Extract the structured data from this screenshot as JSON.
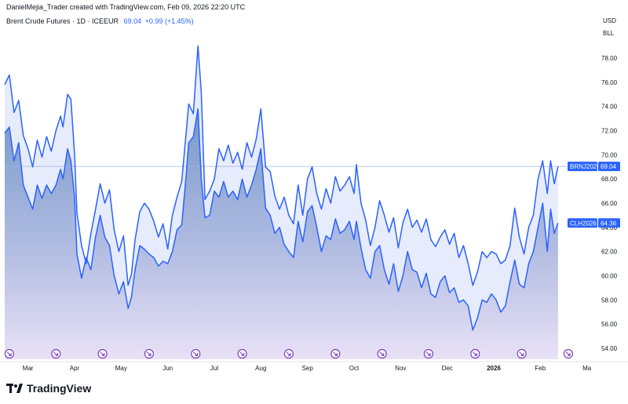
{
  "header": {
    "credit": "DanielMejia_Trader created with TradingView.com, Feb 09, 2026 22:20 UTC",
    "symbol_title": "Brent Crude Futures · 1D · ICEEUR",
    "last_value": "69.04",
    "change": "+0.99 (+1.45%)"
  },
  "axis": {
    "currency": "USD",
    "unit": "BLL"
  },
  "brand": {
    "name": "TradingView"
  },
  "colors": {
    "line": "#2962ff",
    "fill_top": "#6f93c5",
    "fill_bottom": "#e6def5",
    "band": "#dfe6fb",
    "events": "#7e3fbf"
  },
  "chart_data": {
    "type": "line",
    "title": "Brent Crude Futures · 1D · ICEEUR",
    "ylim": [
      53,
      80
    ],
    "yticks": [
      "54.00",
      "56.00",
      "58.00",
      "60.00",
      "62.00",
      "64.00",
      "66.00",
      "68.00",
      "70.00",
      "72.00",
      "74.00",
      "76.00",
      "78.00"
    ],
    "xlim": [
      0,
      13
    ],
    "x_labels": [
      {
        "label": "Mar",
        "x": 0.5
      },
      {
        "label": "Apr",
        "x": 1.5
      },
      {
        "label": "May",
        "x": 2.5
      },
      {
        "label": "Jun",
        "x": 3.5
      },
      {
        "label": "Jul",
        "x": 4.5
      },
      {
        "label": "Aug",
        "x": 5.5
      },
      {
        "label": "Sep",
        "x": 6.5
      },
      {
        "label": "Oct",
        "x": 7.5
      },
      {
        "label": "Nov",
        "x": 8.5
      },
      {
        "label": "Dec",
        "x": 9.5
      },
      {
        "label": "2026",
        "x": 10.5,
        "bold": true
      },
      {
        "label": "Feb",
        "x": 11.5
      },
      {
        "label": "Ma",
        "x": 12.5
      }
    ],
    "event_markers": [
      0.1,
      1.1,
      2.1,
      3.1,
      4.1,
      5.1,
      6.1,
      7.1,
      8.1,
      9.1,
      10.1,
      11.1,
      12.1
    ],
    "series": [
      {
        "name": "BRNJ2026",
        "last": "69.04",
        "points": [
          [
            0.0,
            75.8
          ],
          [
            0.1,
            76.6
          ],
          [
            0.2,
            73.5
          ],
          [
            0.3,
            74.5
          ],
          [
            0.4,
            71.6
          ],
          [
            0.5,
            70.5
          ],
          [
            0.6,
            69.0
          ],
          [
            0.7,
            71.2
          ],
          [
            0.8,
            69.8
          ],
          [
            0.9,
            71.5
          ],
          [
            1.0,
            70.3
          ],
          [
            1.1,
            72.0
          ],
          [
            1.2,
            73.2
          ],
          [
            1.25,
            72.3
          ],
          [
            1.35,
            75.0
          ],
          [
            1.42,
            74.6
          ],
          [
            1.5,
            70.0
          ],
          [
            1.55,
            65.2
          ],
          [
            1.65,
            62.5
          ],
          [
            1.75,
            61.0
          ],
          [
            1.85,
            63.5
          ],
          [
            1.95,
            65.5
          ],
          [
            2.05,
            67.6
          ],
          [
            2.15,
            66.0
          ],
          [
            2.25,
            67.1
          ],
          [
            2.35,
            63.8
          ],
          [
            2.45,
            62.0
          ],
          [
            2.55,
            63.3
          ],
          [
            2.65,
            59.2
          ],
          [
            2.72,
            60.1
          ],
          [
            2.8,
            63.0
          ],
          [
            2.9,
            65.3
          ],
          [
            3.0,
            66.0
          ],
          [
            3.1,
            65.5
          ],
          [
            3.2,
            64.5
          ],
          [
            3.3,
            63.2
          ],
          [
            3.4,
            64.3
          ],
          [
            3.5,
            62.2
          ],
          [
            3.6,
            65.0
          ],
          [
            3.7,
            66.5
          ],
          [
            3.8,
            67.8
          ],
          [
            3.9,
            72.0
          ],
          [
            3.95,
            74.2
          ],
          [
            4.05,
            73.4
          ],
          [
            4.15,
            79.0
          ],
          [
            4.22,
            75.2
          ],
          [
            4.3,
            66.3
          ],
          [
            4.4,
            67.0
          ],
          [
            4.5,
            68.0
          ],
          [
            4.6,
            70.5
          ],
          [
            4.7,
            69.5
          ],
          [
            4.8,
            70.8
          ],
          [
            4.9,
            69.3
          ],
          [
            5.0,
            70.2
          ],
          [
            5.1,
            68.8
          ],
          [
            5.2,
            71.0
          ],
          [
            5.3,
            69.8
          ],
          [
            5.4,
            71.3
          ],
          [
            5.5,
            73.8
          ],
          [
            5.6,
            69.0
          ],
          [
            5.7,
            68.6
          ],
          [
            5.8,
            66.6
          ],
          [
            5.9,
            65.5
          ],
          [
            6.0,
            66.5
          ],
          [
            6.1,
            65.0
          ],
          [
            6.2,
            64.3
          ],
          [
            6.3,
            67.5
          ],
          [
            6.4,
            65.0
          ],
          [
            6.5,
            68.0
          ],
          [
            6.6,
            69.0
          ],
          [
            6.7,
            66.8
          ],
          [
            6.8,
            65.5
          ],
          [
            6.9,
            67.2
          ],
          [
            7.0,
            66.0
          ],
          [
            7.1,
            68.2
          ],
          [
            7.2,
            67.0
          ],
          [
            7.3,
            67.5
          ],
          [
            7.4,
            68.2
          ],
          [
            7.5,
            66.8
          ],
          [
            7.55,
            69.2
          ],
          [
            7.65,
            66.0
          ],
          [
            7.75,
            64.6
          ],
          [
            7.85,
            62.5
          ],
          [
            7.95,
            64.0
          ],
          [
            8.05,
            66.2
          ],
          [
            8.15,
            65.0
          ],
          [
            8.25,
            63.6
          ],
          [
            8.35,
            64.8
          ],
          [
            8.45,
            62.3
          ],
          [
            8.55,
            64.4
          ],
          [
            8.65,
            65.5
          ],
          [
            8.75,
            64.0
          ],
          [
            8.85,
            64.6
          ],
          [
            8.95,
            63.6
          ],
          [
            9.05,
            64.7
          ],
          [
            9.15,
            63.0
          ],
          [
            9.25,
            62.4
          ],
          [
            9.35,
            63.2
          ],
          [
            9.45,
            63.8
          ],
          [
            9.55,
            62.6
          ],
          [
            9.65,
            63.5
          ],
          [
            9.75,
            61.5
          ],
          [
            9.85,
            62.5
          ],
          [
            9.95,
            61.0
          ],
          [
            10.05,
            59.2
          ],
          [
            10.15,
            60.3
          ],
          [
            10.25,
            62.0
          ],
          [
            10.35,
            61.5
          ],
          [
            10.45,
            62.0
          ],
          [
            10.55,
            61.8
          ],
          [
            10.65,
            61.0
          ],
          [
            10.75,
            61.3
          ],
          [
            10.85,
            62.5
          ],
          [
            10.95,
            65.6
          ],
          [
            11.05,
            63.2
          ],
          [
            11.15,
            61.8
          ],
          [
            11.25,
            64.0
          ],
          [
            11.35,
            65.0
          ],
          [
            11.45,
            68.0
          ],
          [
            11.55,
            69.5
          ],
          [
            11.65,
            66.8
          ],
          [
            11.72,
            69.5
          ],
          [
            11.8,
            67.6
          ],
          [
            11.88,
            69.04
          ]
        ]
      },
      {
        "name": "CLH2026",
        "last": "64.36",
        "points": [
          [
            0.0,
            71.8
          ],
          [
            0.1,
            72.3
          ],
          [
            0.2,
            69.5
          ],
          [
            0.3,
            71.0
          ],
          [
            0.4,
            67.5
          ],
          [
            0.5,
            66.5
          ],
          [
            0.6,
            65.5
          ],
          [
            0.7,
            67.5
          ],
          [
            0.8,
            66.4
          ],
          [
            0.9,
            67.5
          ],
          [
            1.0,
            66.8
          ],
          [
            1.1,
            67.5
          ],
          [
            1.2,
            68.8
          ],
          [
            1.25,
            68.0
          ],
          [
            1.35,
            70.5
          ],
          [
            1.42,
            69.5
          ],
          [
            1.5,
            66.5
          ],
          [
            1.55,
            61.8
          ],
          [
            1.65,
            59.8
          ],
          [
            1.75,
            61.5
          ],
          [
            1.85,
            60.5
          ],
          [
            1.95,
            63.2
          ],
          [
            2.05,
            65.0
          ],
          [
            2.15,
            63.2
          ],
          [
            2.25,
            62.5
          ],
          [
            2.35,
            60.0
          ],
          [
            2.45,
            58.5
          ],
          [
            2.55,
            59.5
          ],
          [
            2.65,
            57.3
          ],
          [
            2.72,
            58.2
          ],
          [
            2.8,
            60.5
          ],
          [
            2.9,
            62.5
          ],
          [
            3.0,
            62.2
          ],
          [
            3.1,
            61.8
          ],
          [
            3.2,
            61.5
          ],
          [
            3.3,
            60.8
          ],
          [
            3.4,
            61.2
          ],
          [
            3.5,
            61.0
          ],
          [
            3.6,
            62.0
          ],
          [
            3.7,
            63.8
          ],
          [
            3.8,
            64.2
          ],
          [
            3.9,
            68.5
          ],
          [
            3.95,
            71.0
          ],
          [
            4.05,
            71.5
          ],
          [
            4.15,
            73.8
          ],
          [
            4.22,
            68.0
          ],
          [
            4.3,
            64.8
          ],
          [
            4.4,
            65.0
          ],
          [
            4.5,
            67.0
          ],
          [
            4.6,
            66.5
          ],
          [
            4.7,
            67.8
          ],
          [
            4.8,
            66.5
          ],
          [
            4.9,
            67.0
          ],
          [
            5.0,
            66.3
          ],
          [
            5.1,
            68.0
          ],
          [
            5.2,
            66.5
          ],
          [
            5.3,
            67.5
          ],
          [
            5.4,
            68.8
          ],
          [
            5.5,
            70.5
          ],
          [
            5.6,
            65.6
          ],
          [
            5.7,
            65.0
          ],
          [
            5.8,
            63.5
          ],
          [
            5.9,
            64.0
          ],
          [
            6.0,
            62.6
          ],
          [
            6.1,
            62.0
          ],
          [
            6.2,
            61.5
          ],
          [
            6.3,
            64.5
          ],
          [
            6.4,
            62.8
          ],
          [
            6.5,
            65.3
          ],
          [
            6.6,
            65.8
          ],
          [
            6.7,
            64.0
          ],
          [
            6.8,
            62.0
          ],
          [
            6.9,
            63.3
          ],
          [
            7.0,
            63.0
          ],
          [
            7.1,
            64.7
          ],
          [
            7.2,
            63.5
          ],
          [
            7.3,
            63.8
          ],
          [
            7.4,
            64.5
          ],
          [
            7.5,
            63.0
          ],
          [
            7.55,
            64.5
          ],
          [
            7.65,
            62.3
          ],
          [
            7.75,
            60.5
          ],
          [
            7.85,
            59.8
          ],
          [
            7.95,
            62.0
          ],
          [
            8.05,
            62.5
          ],
          [
            8.15,
            60.5
          ],
          [
            8.25,
            59.3
          ],
          [
            8.35,
            61.0
          ],
          [
            8.45,
            58.7
          ],
          [
            8.55,
            60.0
          ],
          [
            8.65,
            62.0
          ],
          [
            8.75,
            60.5
          ],
          [
            8.85,
            60.3
          ],
          [
            8.95,
            59.0
          ],
          [
            9.05,
            60.2
          ],
          [
            9.15,
            58.5
          ],
          [
            9.25,
            58.2
          ],
          [
            9.35,
            59.5
          ],
          [
            9.45,
            60.0
          ],
          [
            9.55,
            58.6
          ],
          [
            9.65,
            59.0
          ],
          [
            9.75,
            57.8
          ],
          [
            9.85,
            58.0
          ],
          [
            9.95,
            57.5
          ],
          [
            10.05,
            55.5
          ],
          [
            10.15,
            56.5
          ],
          [
            10.25,
            58.0
          ],
          [
            10.35,
            57.8
          ],
          [
            10.45,
            58.5
          ],
          [
            10.55,
            58.0
          ],
          [
            10.65,
            57.0
          ],
          [
            10.75,
            57.5
          ],
          [
            10.85,
            59.5
          ],
          [
            10.95,
            61.3
          ],
          [
            11.05,
            59.3
          ],
          [
            11.15,
            59.0
          ],
          [
            11.25,
            61.0
          ],
          [
            11.35,
            62.0
          ],
          [
            11.45,
            64.0
          ],
          [
            11.55,
            66.0
          ],
          [
            11.65,
            62.0
          ],
          [
            11.72,
            65.5
          ],
          [
            11.8,
            63.5
          ],
          [
            11.88,
            64.36
          ]
        ]
      }
    ]
  }
}
